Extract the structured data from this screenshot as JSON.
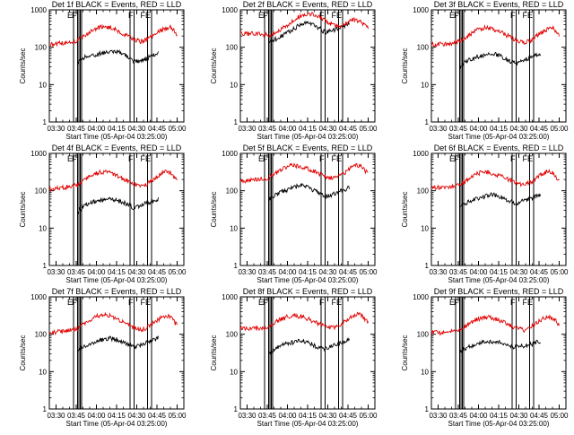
{
  "figure": {
    "xtick_labels": [
      "03:30",
      "03:45",
      "04:00",
      "04:15",
      "04:30",
      "04:45",
      "05:00"
    ],
    "ytick_labels": [
      "1",
      "10",
      "100",
      "1000"
    ],
    "ylabel": "Counts/sec",
    "xlabel": "Start Time (05-Apr-04 03:25:00)",
    "colors": {
      "events": "#000000",
      "lld": "#e00000",
      "axes": "#000000",
      "background": "#ffffff"
    }
  },
  "chart_data": [
    {
      "type": "line",
      "title": "Det 1f BLACK = Events, RED = LLD",
      "x_range": [
        "03:25",
        "05:05"
      ],
      "ylim": [
        1,
        1000
      ],
      "yscale": "log",
      "x_tick_minutes": [
        5,
        20,
        35,
        50,
        65,
        80,
        95
      ],
      "series": [
        {
          "name": "Events",
          "x_min": [
            21,
            27,
            33,
            39,
            45,
            51,
            57,
            63,
            69,
            75,
            81
          ],
          "y": [
            40,
            55,
            60,
            70,
            80,
            75,
            60,
            40,
            45,
            55,
            70
          ]
        },
        {
          "name": "LLD",
          "x_min": [
            0,
            10,
            21,
            27,
            33,
            39,
            45,
            51,
            57,
            63,
            69,
            75,
            81,
            86,
            90,
            95
          ],
          "y": [
            120,
            130,
            150,
            220,
            300,
            350,
            330,
            280,
            210,
            160,
            140,
            180,
            250,
            320,
            350,
            220
          ]
        }
      ],
      "markers": [
        {
          "x_min": 18,
          "label": "E"
        },
        {
          "x_min": 21,
          "label": "F"
        },
        {
          "x_min": 22,
          "label": ""
        },
        {
          "x_min": 23,
          "label": ""
        },
        {
          "x_min": 24,
          "label": ""
        },
        {
          "x_min": 60,
          "label": ""
        },
        {
          "x_min": 63,
          "label": "F"
        },
        {
          "x_min": 73,
          "label": ""
        },
        {
          "x_min": 76,
          "label": "FE"
        }
      ]
    },
    {
      "type": "line",
      "title": "Det 2f BLACK = Events, RED = LLD",
      "x_range": [
        "03:25",
        "05:05"
      ],
      "ylim": [
        1,
        1000
      ],
      "yscale": "log",
      "x_tick_minutes": [
        5,
        20,
        35,
        50,
        65,
        80,
        95
      ],
      "series": [
        {
          "name": "Events",
          "x_min": [
            21,
            27,
            33,
            39,
            45,
            51,
            57,
            63,
            69,
            75,
            81
          ],
          "y": [
            140,
            170,
            220,
            300,
            420,
            480,
            350,
            250,
            280,
            350,
            420
          ]
        },
        {
          "name": "LLD",
          "x_min": [
            0,
            10,
            21,
            27,
            33,
            39,
            45,
            51,
            57,
            63,
            69,
            75,
            81,
            86,
            90,
            95
          ],
          "y": [
            230,
            230,
            210,
            250,
            350,
            500,
            700,
            800,
            700,
            500,
            400,
            350,
            500,
            550,
            450,
            350
          ]
        }
      ],
      "markers": [
        {
          "x_min": 18,
          "label": "E"
        },
        {
          "x_min": 21,
          "label": "F"
        },
        {
          "x_min": 22,
          "label": ""
        },
        {
          "x_min": 23,
          "label": ""
        },
        {
          "x_min": 24,
          "label": ""
        },
        {
          "x_min": 60,
          "label": ""
        },
        {
          "x_min": 63,
          "label": "F"
        },
        {
          "x_min": 73,
          "label": ""
        },
        {
          "x_min": 76,
          "label": "FE"
        }
      ]
    },
    {
      "type": "line",
      "title": "Det 3f BLACK = Events, RED = LLD",
      "x_range": [
        "03:25",
        "05:05"
      ],
      "ylim": [
        1,
        1000
      ],
      "yscale": "log",
      "x_tick_minutes": [
        5,
        20,
        35,
        50,
        65,
        80,
        95
      ],
      "series": [
        {
          "name": "Events",
          "x_min": [
            21,
            27,
            33,
            39,
            45,
            51,
            57,
            63,
            69,
            75,
            81
          ],
          "y": [
            30,
            45,
            55,
            60,
            70,
            60,
            45,
            35,
            45,
            55,
            65
          ]
        },
        {
          "name": "LLD",
          "x_min": [
            0,
            10,
            21,
            27,
            33,
            39,
            45,
            51,
            57,
            63,
            69,
            75,
            81,
            86,
            90,
            95
          ],
          "y": [
            120,
            120,
            140,
            200,
            280,
            330,
            320,
            260,
            200,
            150,
            130,
            160,
            240,
            300,
            330,
            200
          ]
        }
      ],
      "markers": [
        {
          "x_min": 18,
          "label": "E"
        },
        {
          "x_min": 21,
          "label": "F"
        },
        {
          "x_min": 22,
          "label": ""
        },
        {
          "x_min": 23,
          "label": ""
        },
        {
          "x_min": 24,
          "label": ""
        },
        {
          "x_min": 60,
          "label": ""
        },
        {
          "x_min": 63,
          "label": "F"
        },
        {
          "x_min": 73,
          "label": ""
        },
        {
          "x_min": 76,
          "label": "FE"
        }
      ]
    },
    {
      "type": "line",
      "title": "Det 4f BLACK = Events, RED = LLD",
      "x_range": [
        "03:25",
        "05:05"
      ],
      "ylim": [
        1,
        1000
      ],
      "yscale": "log",
      "x_tick_minutes": [
        5,
        20,
        35,
        50,
        65,
        80,
        95
      ],
      "series": [
        {
          "name": "Events",
          "x_min": [
            21,
            27,
            33,
            39,
            45,
            51,
            57,
            63,
            69,
            75,
            81
          ],
          "y": [
            28,
            42,
            50,
            55,
            62,
            55,
            45,
            35,
            42,
            50,
            60
          ]
        },
        {
          "name": "LLD",
          "x_min": [
            0,
            10,
            21,
            27,
            33,
            39,
            45,
            51,
            57,
            63,
            69,
            75,
            81,
            86,
            90,
            95
          ],
          "y": [
            110,
            120,
            140,
            200,
            280,
            320,
            300,
            250,
            190,
            150,
            130,
            170,
            250,
            320,
            300,
            180
          ]
        }
      ],
      "markers": [
        {
          "x_min": 18,
          "label": "E"
        },
        {
          "x_min": 21,
          "label": "F"
        },
        {
          "x_min": 22,
          "label": ""
        },
        {
          "x_min": 23,
          "label": ""
        },
        {
          "x_min": 24,
          "label": ""
        },
        {
          "x_min": 60,
          "label": ""
        },
        {
          "x_min": 63,
          "label": "F"
        },
        {
          "x_min": 73,
          "label": ""
        },
        {
          "x_min": 76,
          "label": "FE"
        }
      ]
    },
    {
      "type": "line",
      "title": "Det 5f BLACK = Events, RED = LLD",
      "x_range": [
        "03:25",
        "05:05"
      ],
      "ylim": [
        1,
        1000
      ],
      "yscale": "log",
      "x_tick_minutes": [
        5,
        20,
        35,
        50,
        65,
        80,
        95
      ],
      "series": [
        {
          "name": "Events",
          "x_min": [
            21,
            27,
            33,
            39,
            45,
            51,
            57,
            63,
            69,
            75,
            81
          ],
          "y": [
            60,
            80,
            100,
            120,
            140,
            120,
            90,
            70,
            80,
            100,
            120
          ]
        },
        {
          "name": "LLD",
          "x_min": [
            0,
            10,
            21,
            27,
            33,
            39,
            45,
            51,
            57,
            63,
            69,
            75,
            81,
            86,
            90,
            95
          ],
          "y": [
            180,
            190,
            220,
            300,
            420,
            480,
            440,
            380,
            300,
            240,
            220,
            260,
            380,
            480,
            450,
            280
          ]
        }
      ],
      "markers": [
        {
          "x_min": 18,
          "label": "E"
        },
        {
          "x_min": 21,
          "label": "F"
        },
        {
          "x_min": 22,
          "label": ""
        },
        {
          "x_min": 23,
          "label": ""
        },
        {
          "x_min": 24,
          "label": ""
        },
        {
          "x_min": 60,
          "label": ""
        },
        {
          "x_min": 63,
          "label": "F"
        },
        {
          "x_min": 73,
          "label": ""
        },
        {
          "x_min": 76,
          "label": "FE"
        }
      ]
    },
    {
      "type": "line",
      "title": "Det 6f BLACK = Events, RED = LLD",
      "x_range": [
        "03:25",
        "05:05"
      ],
      "ylim": [
        1,
        1000
      ],
      "yscale": "log",
      "x_tick_minutes": [
        5,
        20,
        35,
        50,
        65,
        80,
        95
      ],
      "series": [
        {
          "name": "Events",
          "x_min": [
            21,
            27,
            33,
            39,
            45,
            51,
            57,
            63,
            69,
            75,
            81
          ],
          "y": [
            35,
            50,
            60,
            70,
            80,
            70,
            55,
            45,
            55,
            65,
            80
          ]
        },
        {
          "name": "LLD",
          "x_min": [
            0,
            10,
            21,
            27,
            33,
            39,
            45,
            51,
            57,
            63,
            69,
            75,
            81,
            86,
            90,
            95
          ],
          "y": [
            120,
            120,
            140,
            200,
            280,
            320,
            300,
            250,
            200,
            160,
            140,
            180,
            260,
            330,
            300,
            180
          ]
        }
      ],
      "markers": [
        {
          "x_min": 18,
          "label": "E"
        },
        {
          "x_min": 21,
          "label": "F"
        },
        {
          "x_min": 22,
          "label": ""
        },
        {
          "x_min": 23,
          "label": ""
        },
        {
          "x_min": 24,
          "label": ""
        },
        {
          "x_min": 60,
          "label": ""
        },
        {
          "x_min": 63,
          "label": "F"
        },
        {
          "x_min": 73,
          "label": ""
        },
        {
          "x_min": 76,
          "label": "FE"
        }
      ]
    },
    {
      "type": "line",
      "title": "Det 7f BLACK = Events, RED = LLD",
      "x_range": [
        "03:25",
        "05:05"
      ],
      "ylim": [
        1,
        1000
      ],
      "yscale": "log",
      "x_tick_minutes": [
        5,
        20,
        35,
        50,
        65,
        80,
        95
      ],
      "series": [
        {
          "name": "Events",
          "x_min": [
            21,
            27,
            33,
            39,
            45,
            51,
            57,
            63,
            69,
            75,
            81
          ],
          "y": [
            35,
            50,
            60,
            70,
            80,
            70,
            55,
            45,
            55,
            65,
            80
          ]
        },
        {
          "name": "LLD",
          "x_min": [
            0,
            10,
            21,
            27,
            33,
            39,
            45,
            51,
            57,
            63,
            69,
            75,
            81,
            86,
            90,
            95
          ],
          "y": [
            110,
            120,
            140,
            200,
            280,
            330,
            310,
            250,
            190,
            150,
            130,
            170,
            250,
            320,
            300,
            170
          ]
        }
      ],
      "markers": [
        {
          "x_min": 18,
          "label": "E"
        },
        {
          "x_min": 21,
          "label": "F"
        },
        {
          "x_min": 22,
          "label": ""
        },
        {
          "x_min": 23,
          "label": ""
        },
        {
          "x_min": 24,
          "label": ""
        },
        {
          "x_min": 60,
          "label": ""
        },
        {
          "x_min": 63,
          "label": "F"
        },
        {
          "x_min": 73,
          "label": ""
        },
        {
          "x_min": 76,
          "label": "FE"
        }
      ]
    },
    {
      "type": "line",
      "title": "Det 8f BLACK = Events, RED = LLD",
      "x_range": [
        "03:25",
        "05:05"
      ],
      "ylim": [
        1,
        1000
      ],
      "yscale": "log",
      "x_tick_minutes": [
        5,
        20,
        35,
        50,
        65,
        80,
        95
      ],
      "series": [
        {
          "name": "Events",
          "x_min": [
            21,
            27,
            33,
            39,
            45,
            51,
            57,
            63,
            69,
            75,
            81
          ],
          "y": [
            30,
            45,
            55,
            60,
            70,
            60,
            45,
            40,
            50,
            60,
            70
          ]
        },
        {
          "name": "LLD",
          "x_min": [
            0,
            10,
            21,
            27,
            33,
            39,
            45,
            51,
            57,
            63,
            69,
            75,
            81,
            86,
            90,
            95
          ],
          "y": [
            140,
            140,
            150,
            220,
            280,
            320,
            300,
            250,
            200,
            160,
            150,
            190,
            270,
            340,
            320,
            200
          ]
        }
      ],
      "markers": [
        {
          "x_min": 18,
          "label": "E"
        },
        {
          "x_min": 21,
          "label": "F"
        },
        {
          "x_min": 22,
          "label": ""
        },
        {
          "x_min": 23,
          "label": ""
        },
        {
          "x_min": 24,
          "label": ""
        },
        {
          "x_min": 60,
          "label": ""
        },
        {
          "x_min": 63,
          "label": "F"
        },
        {
          "x_min": 73,
          "label": ""
        },
        {
          "x_min": 76,
          "label": "FE"
        }
      ]
    },
    {
      "type": "line",
      "title": "Det 9f BLACK = Events, RED = LLD",
      "x_range": [
        "03:25",
        "05:05"
      ],
      "ylim": [
        1,
        1000
      ],
      "yscale": "log",
      "x_tick_minutes": [
        5,
        20,
        35,
        50,
        65,
        80,
        95
      ],
      "series": [
        {
          "name": "Events",
          "x_min": [
            21,
            27,
            33,
            39,
            45,
            51,
            57,
            63,
            69,
            75,
            81
          ],
          "y": [
            35,
            45,
            55,
            60,
            65,
            60,
            50,
            45,
            50,
            55,
            65
          ]
        },
        {
          "name": "LLD",
          "x_min": [
            0,
            10,
            21,
            27,
            33,
            39,
            45,
            51,
            57,
            63,
            69,
            75,
            81,
            86,
            90,
            95
          ],
          "y": [
            110,
            110,
            130,
            180,
            240,
            290,
            280,
            230,
            180,
            150,
            130,
            170,
            240,
            300,
            280,
            180
          ]
        }
      ],
      "markers": [
        {
          "x_min": 18,
          "label": "E"
        },
        {
          "x_min": 21,
          "label": "F"
        },
        {
          "x_min": 22,
          "label": ""
        },
        {
          "x_min": 23,
          "label": ""
        },
        {
          "x_min": 24,
          "label": ""
        },
        {
          "x_min": 60,
          "label": ""
        },
        {
          "x_min": 63,
          "label": "F"
        },
        {
          "x_min": 73,
          "label": ""
        },
        {
          "x_min": 76,
          "label": "FE"
        }
      ]
    }
  ]
}
